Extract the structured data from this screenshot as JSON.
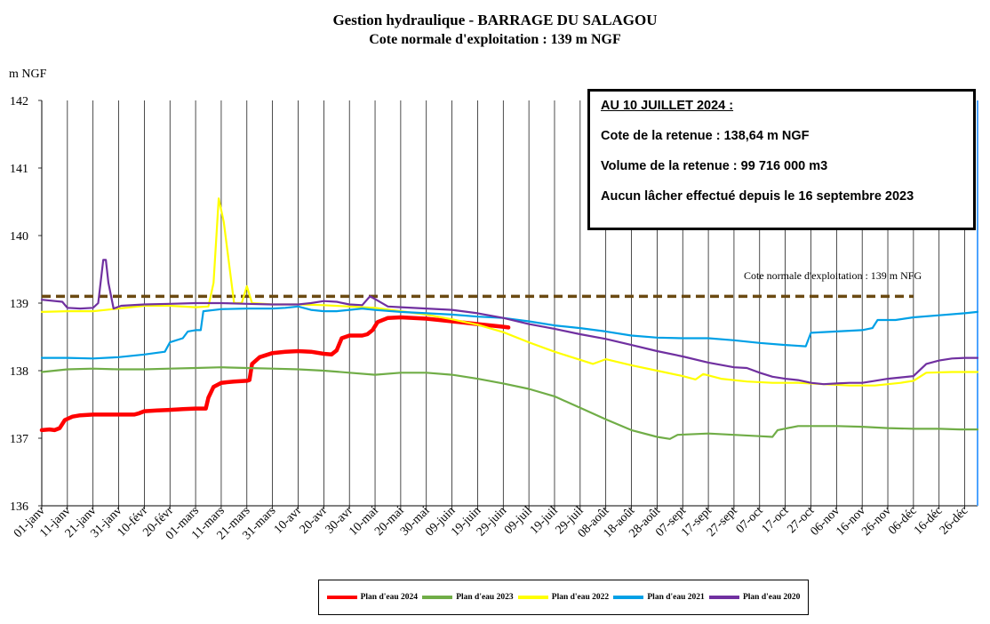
{
  "title": "Gestion hydraulique - BARRAGE DU SALAGOU",
  "subtitle": "Cote normale d'exploitation : 139 m NGF",
  "infobox": {
    "heading": "AU 10 JUILLET 2024 :",
    "line1": "Cote de la retenue : 138,64 m NGF",
    "line2": "Volume de la retenue : 99 716 000 m3",
    "line3": "Aucun lâcher effectué depuis le 16 septembre 2023"
  },
  "chart_data": {
    "type": "line",
    "title": "Gestion hydraulique - BARRAGE DU SALAGOU",
    "subtitle": "Cote normale d'exploitation : 139 m NGF",
    "ylabel": "m NGF",
    "xlabel": "",
    "ylim": [
      136,
      142
    ],
    "xlim": [
      0,
      365
    ],
    "yticks": [
      136,
      137,
      138,
      139,
      140,
      141,
      142
    ],
    "xtick_labels": [
      "01-janv",
      "11-janv",
      "21-janv",
      "31-janv",
      "10-févr",
      "20-févr",
      "01-mars",
      "11-mars",
      "21-mars",
      "31-mars",
      "10-avr",
      "20-avr",
      "30-avr",
      "10-mai",
      "20-mai",
      "30-mai",
      "09-juin",
      "19-juin",
      "29-juin",
      "09-juil",
      "19-juil",
      "29-juil",
      "08-août",
      "18-août",
      "28-août",
      "07-sept",
      "17-sept",
      "27-sept",
      "07-oct",
      "17-oct",
      "27-oct",
      "06-nov",
      "16-nov",
      "26-nov",
      "06-déc",
      "16-déc",
      "26-déc"
    ],
    "x_is_day_of_year": true,
    "grid": "vertical",
    "reference_line": {
      "value": 139.1,
      "label": "Cote normale d'exploitation : 139 m NFG",
      "color": "#6b4a12",
      "x_range": [
        0,
        340
      ]
    },
    "legend_position": "bottom",
    "series": [
      {
        "name": "Plan d'eau 2024",
        "color": "#ff0000",
        "points": [
          [
            0,
            137.12
          ],
          [
            3,
            137.13
          ],
          [
            5,
            137.12
          ],
          [
            7,
            137.15
          ],
          [
            9,
            137.27
          ],
          [
            12,
            137.32
          ],
          [
            15,
            137.34
          ],
          [
            20,
            137.35
          ],
          [
            30,
            137.35
          ],
          [
            36,
            137.35
          ],
          [
            38,
            137.37
          ],
          [
            40,
            137.4
          ],
          [
            45,
            137.41
          ],
          [
            50,
            137.42
          ],
          [
            55,
            137.43
          ],
          [
            60,
            137.44
          ],
          [
            64,
            137.44
          ],
          [
            65,
            137.6
          ],
          [
            67,
            137.76
          ],
          [
            70,
            137.82
          ],
          [
            75,
            137.84
          ],
          [
            80,
            137.85
          ],
          [
            81,
            137.86
          ],
          [
            82,
            138.1
          ],
          [
            85,
            138.2
          ],
          [
            90,
            138.26
          ],
          [
            95,
            138.28
          ],
          [
            100,
            138.29
          ],
          [
            105,
            138.28
          ],
          [
            110,
            138.25
          ],
          [
            113,
            138.24
          ],
          [
            115,
            138.3
          ],
          [
            117,
            138.48
          ],
          [
            120,
            138.52
          ],
          [
            125,
            138.52
          ],
          [
            127,
            138.54
          ],
          [
            129,
            138.6
          ],
          [
            131,
            138.72
          ],
          [
            135,
            138.78
          ],
          [
            140,
            138.79
          ],
          [
            145,
            138.78
          ],
          [
            150,
            138.77
          ],
          [
            155,
            138.75
          ],
          [
            160,
            138.73
          ],
          [
            165,
            138.71
          ],
          [
            170,
            138.69
          ],
          [
            175,
            138.67
          ],
          [
            180,
            138.65
          ],
          [
            182,
            138.64
          ]
        ]
      },
      {
        "name": "Plan d'eau 2023",
        "color": "#70ad47",
        "points": [
          [
            0,
            137.98
          ],
          [
            10,
            138.02
          ],
          [
            20,
            138.03
          ],
          [
            30,
            138.02
          ],
          [
            40,
            138.02
          ],
          [
            50,
            138.03
          ],
          [
            60,
            138.04
          ],
          [
            70,
            138.05
          ],
          [
            80,
            138.04
          ],
          [
            90,
            138.03
          ],
          [
            100,
            138.02
          ],
          [
            110,
            138.0
          ],
          [
            120,
            137.97
          ],
          [
            130,
            137.94
          ],
          [
            140,
            137.97
          ],
          [
            150,
            137.97
          ],
          [
            160,
            137.94
          ],
          [
            170,
            137.88
          ],
          [
            180,
            137.81
          ],
          [
            190,
            137.73
          ],
          [
            200,
            137.62
          ],
          [
            210,
            137.45
          ],
          [
            220,
            137.28
          ],
          [
            230,
            137.12
          ],
          [
            240,
            137.02
          ],
          [
            245,
            136.99
          ],
          [
            248,
            137.05
          ],
          [
            260,
            137.07
          ],
          [
            270,
            137.05
          ],
          [
            280,
            137.03
          ],
          [
            285,
            137.02
          ],
          [
            287,
            137.12
          ],
          [
            295,
            137.18
          ],
          [
            310,
            137.18
          ],
          [
            320,
            137.17
          ],
          [
            330,
            137.15
          ],
          [
            340,
            137.14
          ],
          [
            350,
            137.14
          ],
          [
            358,
            137.13
          ],
          [
            365,
            137.13
          ]
        ]
      },
      {
        "name": "Plan d'eau 2022",
        "color": "#ffff00",
        "points": [
          [
            0,
            138.87
          ],
          [
            10,
            138.88
          ],
          [
            20,
            138.88
          ],
          [
            30,
            138.92
          ],
          [
            40,
            138.96
          ],
          [
            50,
            138.96
          ],
          [
            60,
            138.94
          ],
          [
            65,
            138.95
          ],
          [
            67,
            139.3
          ],
          [
            69,
            140.55
          ],
          [
            71,
            140.2
          ],
          [
            73,
            139.6
          ],
          [
            75,
            139.0
          ],
          [
            78,
            139.0
          ],
          [
            80,
            139.25
          ],
          [
            82,
            139.0
          ],
          [
            90,
            138.98
          ],
          [
            100,
            138.98
          ],
          [
            110,
            138.97
          ],
          [
            120,
            138.95
          ],
          [
            130,
            138.93
          ],
          [
            140,
            138.88
          ],
          [
            150,
            138.83
          ],
          [
            160,
            138.76
          ],
          [
            170,
            138.68
          ],
          [
            180,
            138.57
          ],
          [
            190,
            138.42
          ],
          [
            200,
            138.28
          ],
          [
            210,
            138.16
          ],
          [
            215,
            138.1
          ],
          [
            220,
            138.17
          ],
          [
            230,
            138.08
          ],
          [
            240,
            138.0
          ],
          [
            250,
            137.92
          ],
          [
            255,
            137.87
          ],
          [
            258,
            137.95
          ],
          [
            265,
            137.88
          ],
          [
            275,
            137.84
          ],
          [
            285,
            137.82
          ],
          [
            295,
            137.82
          ],
          [
            305,
            137.8
          ],
          [
            315,
            137.78
          ],
          [
            325,
            137.78
          ],
          [
            335,
            137.82
          ],
          [
            340,
            137.85
          ],
          [
            345,
            137.97
          ],
          [
            355,
            137.98
          ],
          [
            365,
            137.98
          ]
        ]
      },
      {
        "name": "Plan d'eau 2021",
        "color": "#00a0e6",
        "points": [
          [
            0,
            138.19
          ],
          [
            10,
            138.19
          ],
          [
            20,
            138.18
          ],
          [
            30,
            138.2
          ],
          [
            40,
            138.24
          ],
          [
            48,
            138.28
          ],
          [
            50,
            138.42
          ],
          [
            55,
            138.48
          ],
          [
            57,
            138.58
          ],
          [
            60,
            138.6
          ],
          [
            62,
            138.6
          ],
          [
            63,
            138.88
          ],
          [
            70,
            138.91
          ],
          [
            80,
            138.92
          ],
          [
            90,
            138.92
          ],
          [
            95,
            138.93
          ],
          [
            100,
            138.95
          ],
          [
            105,
            138.9
          ],
          [
            110,
            138.88
          ],
          [
            115,
            138.88
          ],
          [
            120,
            138.9
          ],
          [
            125,
            138.92
          ],
          [
            130,
            138.9
          ],
          [
            140,
            138.87
          ],
          [
            150,
            138.85
          ],
          [
            160,
            138.83
          ],
          [
            170,
            138.8
          ],
          [
            180,
            138.78
          ],
          [
            190,
            138.73
          ],
          [
            200,
            138.67
          ],
          [
            210,
            138.63
          ],
          [
            220,
            138.58
          ],
          [
            230,
            138.52
          ],
          [
            240,
            138.49
          ],
          [
            250,
            138.48
          ],
          [
            260,
            138.48
          ],
          [
            270,
            138.45
          ],
          [
            280,
            138.41
          ],
          [
            290,
            138.38
          ],
          [
            298,
            138.36
          ],
          [
            300,
            138.56
          ],
          [
            310,
            138.58
          ],
          [
            320,
            138.6
          ],
          [
            324,
            138.63
          ],
          [
            326,
            138.75
          ],
          [
            333,
            138.75
          ],
          [
            340,
            138.79
          ],
          [
            350,
            138.82
          ],
          [
            360,
            138.85
          ],
          [
            365,
            138.87
          ]
        ]
      },
      {
        "name": "Plan d'eau 2020",
        "color": "#7030a0",
        "points": [
          [
            0,
            139.05
          ],
          [
            8,
            139.02
          ],
          [
            10,
            138.93
          ],
          [
            15,
            138.92
          ],
          [
            20,
            138.93
          ],
          [
            22,
            139.0
          ],
          [
            24,
            139.64
          ],
          [
            25,
            139.64
          ],
          [
            26,
            139.3
          ],
          [
            28,
            138.92
          ],
          [
            31,
            138.96
          ],
          [
            40,
            138.98
          ],
          [
            50,
            138.99
          ],
          [
            60,
            139.0
          ],
          [
            70,
            139.0
          ],
          [
            80,
            138.99
          ],
          [
            90,
            138.98
          ],
          [
            100,
            138.98
          ],
          [
            105,
            139.0
          ],
          [
            110,
            139.03
          ],
          [
            115,
            139.02
          ],
          [
            120,
            138.98
          ],
          [
            125,
            138.97
          ],
          [
            128,
            139.1
          ],
          [
            130,
            139.06
          ],
          [
            135,
            138.95
          ],
          [
            140,
            138.94
          ],
          [
            150,
            138.92
          ],
          [
            160,
            138.9
          ],
          [
            170,
            138.85
          ],
          [
            180,
            138.78
          ],
          [
            190,
            138.69
          ],
          [
            200,
            138.62
          ],
          [
            210,
            138.54
          ],
          [
            220,
            138.47
          ],
          [
            230,
            138.38
          ],
          [
            240,
            138.29
          ],
          [
            250,
            138.21
          ],
          [
            260,
            138.12
          ],
          [
            270,
            138.05
          ],
          [
            275,
            138.04
          ],
          [
            280,
            137.97
          ],
          [
            285,
            137.91
          ],
          [
            290,
            137.88
          ],
          [
            295,
            137.86
          ],
          [
            300,
            137.82
          ],
          [
            305,
            137.8
          ],
          [
            310,
            137.81
          ],
          [
            315,
            137.82
          ],
          [
            320,
            137.82
          ],
          [
            325,
            137.85
          ],
          [
            330,
            137.88
          ],
          [
            335,
            137.9
          ],
          [
            340,
            137.92
          ],
          [
            345,
            138.1
          ],
          [
            350,
            138.15
          ],
          [
            355,
            138.18
          ],
          [
            360,
            138.19
          ],
          [
            365,
            138.19
          ]
        ]
      }
    ]
  },
  "legend": [
    {
      "label": "Plan d'eau 2024",
      "color": "#ff0000"
    },
    {
      "label": "Plan d'eau 2023",
      "color": "#70ad47"
    },
    {
      "label": "Plan d'eau 2022",
      "color": "#ffff00"
    },
    {
      "label": "Plan d'eau 2021",
      "color": "#00a0e6"
    },
    {
      "label": "Plan d'eau 2020",
      "color": "#7030a0"
    }
  ]
}
